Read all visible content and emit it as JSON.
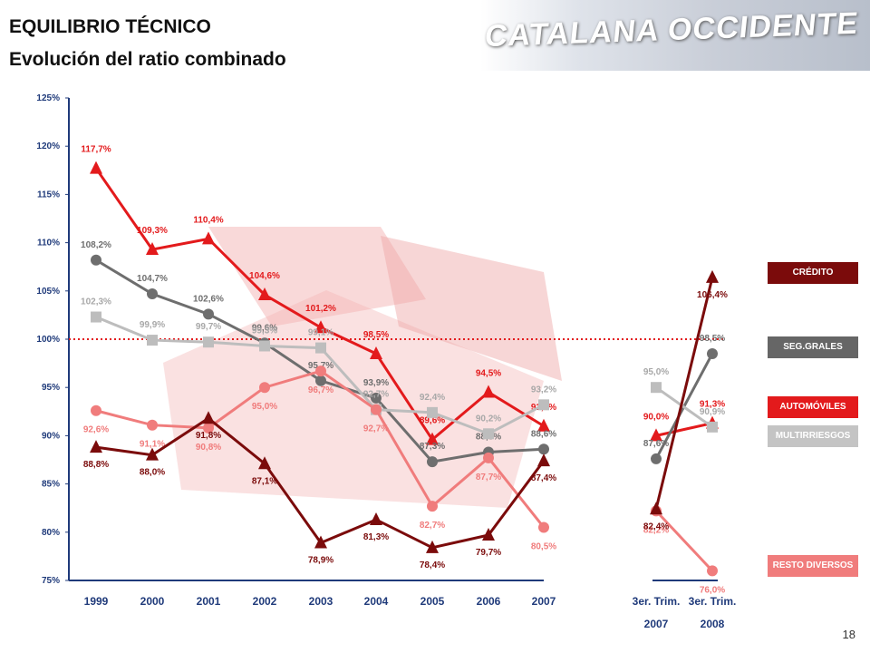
{
  "header": {
    "title": "EQUILIBRIO TÉCNICO",
    "subtitle": "Evolución del ratio combinado",
    "logo_text": "CATALANA OCCIDENTE"
  },
  "page_number": "18",
  "legend": [
    {
      "label": "CRÉDITO",
      "color": "#7b0b0b"
    },
    {
      "label": "SEG.GRALES",
      "color": "#666666"
    },
    {
      "label": "AUTOMÓVILES",
      "color": "#e31a1c"
    },
    {
      "label": "MULTIRRIESGOS",
      "color": "#c4c4c4"
    },
    {
      "label": "RESTO DIVERSOS",
      "color": "#f07c7c"
    }
  ],
  "chart_data": {
    "type": "line",
    "x": [
      "1999",
      "2000",
      "2001",
      "2002",
      "2003",
      "2004",
      "2005",
      "2006",
      "2007",
      "3er. Trim. 2007",
      "3er. Trim. 2008"
    ],
    "y_ticks": [
      "75%",
      "80%",
      "85%",
      "90%",
      "95%",
      "100%",
      "105%",
      "110%",
      "115%",
      "120%",
      "125%"
    ],
    "ylim": [
      75,
      125
    ],
    "reference_line": 100,
    "series": [
      {
        "name": "AUTOMÓVILES",
        "color": "#e31a1c",
        "marker": "triangle",
        "values": [
          117.7,
          109.3,
          110.4,
          104.6,
          101.2,
          98.5,
          89.6,
          94.5,
          91.0,
          90.0,
          91.3
        ],
        "labels": [
          "117,7%",
          "109,3%",
          "110,4%",
          "104,6%",
          "101,2%",
          "98,5%",
          "89,6%",
          "94,5%",
          "91,0%",
          "90,0%",
          "91,3%"
        ]
      },
      {
        "name": "SEG.GRALES",
        "color": "#6e6e6e",
        "marker": "circle",
        "values": [
          108.2,
          104.7,
          102.6,
          99.6,
          95.7,
          93.9,
          87.3,
          88.3,
          88.6,
          87.6,
          98.5
        ],
        "labels": [
          "108,2%",
          "104,7%",
          "102,6%",
          "99,6%",
          "95,7%",
          "93,9%",
          "87,3%",
          "88,3%",
          "88,6%",
          "87,6%",
          "98,5%"
        ]
      },
      {
        "name": "MULTIRRIESGOS",
        "color": "#bdbdbd",
        "marker": "square",
        "values": [
          102.3,
          99.9,
          99.7,
          99.3,
          99.1,
          92.7,
          92.4,
          90.2,
          93.2,
          95.0,
          90.9
        ],
        "labels": [
          "102,3%",
          "99,9%",
          "99,7%",
          "99,3%",
          "99,1%",
          "92,7%",
          "92,4%",
          "90,2%",
          "93,2%",
          "95,0%",
          "90,9%"
        ]
      },
      {
        "name": "RESTO DIVERSOS",
        "color": "#f07c7c",
        "marker": "circle",
        "values": [
          92.6,
          91.1,
          90.8,
          95.0,
          96.7,
          92.7,
          82.7,
          87.7,
          80.5,
          82.2,
          76.0
        ],
        "labels": [
          "92,6%",
          "91,1%",
          "90,8%",
          "95,0%",
          "96,7%",
          "92,7%",
          "82,7%",
          "87,7%",
          "80,5%",
          "82,2%",
          "76,0%"
        ]
      },
      {
        "name": "CRÉDITO",
        "color": "#7b0b0b",
        "marker": "triangle",
        "values": [
          88.8,
          88.0,
          91.8,
          87.1,
          78.9,
          81.3,
          78.4,
          79.7,
          87.4,
          82.4,
          106.4
        ],
        "labels": [
          "88,8%",
          "88,0%",
          "91,8%",
          "87,1%",
          "78,9%",
          "81,3%",
          "78,4%",
          "79,7%",
          "87,4%",
          "82,4%",
          "106,4%"
        ]
      }
    ]
  }
}
